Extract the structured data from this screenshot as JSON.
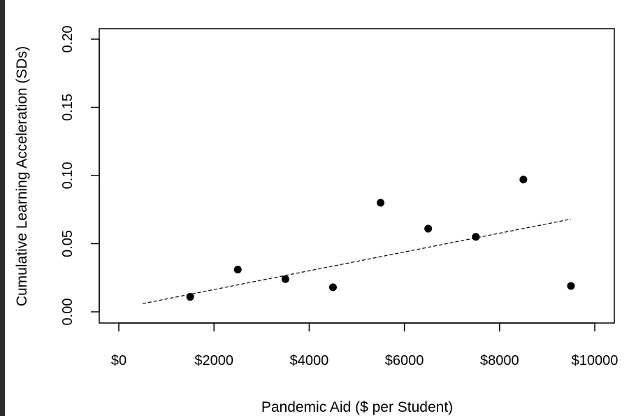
{
  "chart_data": {
    "type": "scatter",
    "xlabel": "Pandemic Aid ($ per Student)",
    "ylabel": "Cumulative Learning Acceleration (SDs)",
    "xlim": [
      0,
      10000
    ],
    "ylim": [
      0,
      0.2
    ],
    "x_ticks": [
      0,
      2000,
      4000,
      6000,
      8000,
      10000
    ],
    "x_tick_labels": [
      "$0",
      "$2000",
      "$4000",
      "$6000",
      "$8000",
      "$10000"
    ],
    "y_ticks": [
      0,
      0.05,
      0.1,
      0.15,
      0.2
    ],
    "y_tick_labels": [
      "0.00",
      "0.05",
      "0.10",
      "0.15",
      "0.20"
    ],
    "grid": false,
    "points": [
      {
        "x": 1500,
        "y": 0.011
      },
      {
        "x": 2500,
        "y": 0.031
      },
      {
        "x": 3500,
        "y": 0.024
      },
      {
        "x": 4500,
        "y": 0.018
      },
      {
        "x": 5500,
        "y": 0.08
      },
      {
        "x": 6500,
        "y": 0.061
      },
      {
        "x": 7500,
        "y": 0.055
      },
      {
        "x": 8500,
        "y": 0.097
      },
      {
        "x": 9500,
        "y": 0.019
      }
    ],
    "trendline": {
      "style": "dashed",
      "x": [
        500,
        9500
      ],
      "y": [
        0.006,
        0.068
      ]
    }
  }
}
